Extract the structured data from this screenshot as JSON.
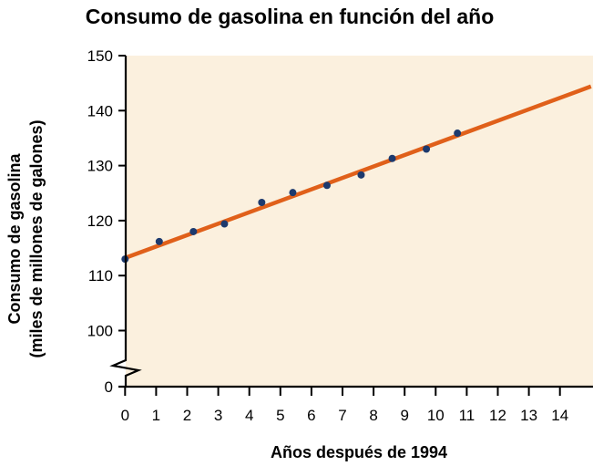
{
  "chart_data": {
    "type": "scatter",
    "title": "Consumo de gasolina en función del año",
    "xlabel": "Años después de 1994",
    "ylabel_line1": "Consumo de gasolina",
    "ylabel_line2": "(miles de millones de galones)",
    "xlim": [
      0,
      15
    ],
    "ylim": [
      100,
      150
    ],
    "y_axis_break": true,
    "x_ticks": [
      "0",
      "1",
      "2",
      "3",
      "4",
      "5",
      "6",
      "7",
      "8",
      "9",
      "10",
      "11",
      "12",
      "13",
      "14"
    ],
    "y_ticks": [
      "0",
      "100",
      "110",
      "120",
      "130",
      "140",
      "150"
    ],
    "grid": false,
    "points": [
      {
        "x": 0,
        "y": 113.0
      },
      {
        "x": 1.1,
        "y": 116.2
      },
      {
        "x": 2.2,
        "y": 118.0
      },
      {
        "x": 3.2,
        "y": 119.4
      },
      {
        "x": 4.4,
        "y": 123.3
      },
      {
        "x": 5.4,
        "y": 125.1
      },
      {
        "x": 6.5,
        "y": 126.4
      },
      {
        "x": 7.6,
        "y": 128.3
      },
      {
        "x": 8.6,
        "y": 131.3
      },
      {
        "x": 9.7,
        "y": 133.0
      },
      {
        "x": 10.7,
        "y": 135.9
      }
    ],
    "trend_line": {
      "x0": 0,
      "y0": 113.2,
      "x1": 15,
      "y1": 144.4
    },
    "colors": {
      "background": "#fbf0de",
      "points": "#1d3a6e",
      "line": "#e0601a",
      "axis": "#000000"
    }
  }
}
